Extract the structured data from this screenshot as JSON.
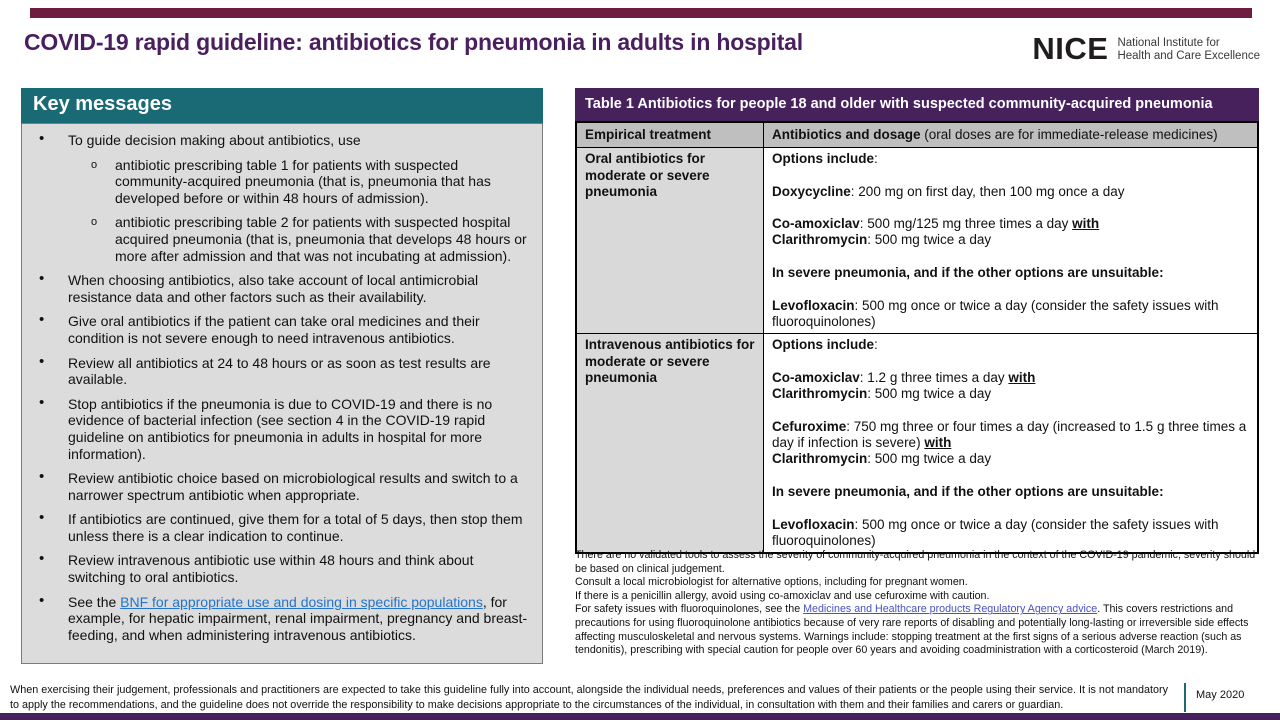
{
  "page": {
    "title": "COVID-19 rapid guideline: antibiotics for pneumonia in adults in hospital"
  },
  "logo": {
    "acronym": "NICE",
    "tagline1": "National Institute for",
    "tagline2": "Health and Care Excellence"
  },
  "colors": {
    "title_purple": "#4a1f5f",
    "table_purple": "#46215c",
    "teal": "#196a75",
    "panel_gray": "#dcdcdc",
    "header_gray": "#bfbfbf",
    "cell_gray": "#d9d9d9",
    "rule_maroon": "#6e1d40",
    "link_blue": "#2374cf",
    "link_violet": "#4752c4"
  },
  "key_messages": {
    "title": "Key messages",
    "bullets": [
      {
        "level": 1,
        "segments": [
          {
            "t": "To guide decision making about antibiotics, use"
          }
        ]
      },
      {
        "level": 2,
        "segments": [
          {
            "t": "antibiotic prescribing table 1 for patients with suspected community-acquired pneumonia (that is, pneumonia that has developed before or within 48 hours of admission)."
          }
        ]
      },
      {
        "level": 2,
        "segments": [
          {
            "t": "antibiotic prescribing table 2 for patients with suspected hospital acquired pneumonia (that is, pneumonia that develops 48 hours or more after admission and that was not incubating at admission)."
          }
        ]
      },
      {
        "level": 1,
        "segments": [
          {
            "t": "When choosing antibiotics, also take account of local antimicrobial resistance data and other factors such as their availability."
          }
        ]
      },
      {
        "level": 1,
        "segments": [
          {
            "t": "Give oral antibiotics if the patient can take oral medicines and their condition is not severe enough to need intravenous antibiotics."
          }
        ]
      },
      {
        "level": 1,
        "segments": [
          {
            "t": "Review all antibiotics at 24 to 48 hours or as soon as test results are available."
          }
        ]
      },
      {
        "level": 1,
        "segments": [
          {
            "t": "Stop antibiotics if the pneumonia is due to COVID-19 and there is no evidence of bacterial infection (see section 4 in the COVID-19 rapid guideline on antibiotics for pneumonia in adults in hospital for more information)."
          }
        ]
      },
      {
        "level": 1,
        "segments": [
          {
            "t": "Review antibiotic choice based on microbiological results and switch to a narrower spectrum antibiotic when appropriate."
          }
        ]
      },
      {
        "level": 1,
        "segments": [
          {
            "t": "If antibiotics are continued, give them for a total of 5 days, then stop them unless there is a clear indication to continue."
          }
        ]
      },
      {
        "level": 1,
        "segments": [
          {
            "t": "Review intravenous antibiotic use within 48 hours and think about switching to oral antibiotics."
          }
        ]
      },
      {
        "level": 1,
        "segments": [
          {
            "t": "See the "
          },
          {
            "t": "BNF for appropriate use and dosing in specific populations",
            "link": true,
            "name": "bnf-link"
          },
          {
            "t": ", for example, for hepatic impairment, renal impairment, pregnancy and breast-feeding, and when administering intravenous antibiotics."
          }
        ]
      }
    ]
  },
  "table1": {
    "title": "Table 1 Antibiotics for people 18 and older with suspected community-acquired pneumonia",
    "header": {
      "col1": "Empirical treatment",
      "col2_bold": "Antibiotics and dosage",
      "col2_rest": " (oral doses are for immediate-release medicines)"
    },
    "rows": [
      {
        "treatment": "Oral antibiotics for moderate or severe pneumonia",
        "paragraphs": [
          [
            {
              "t": "Options include",
              "b": true
            },
            {
              "t": ":"
            }
          ],
          [],
          [
            {
              "t": "Doxycycline",
              "b": true
            },
            {
              "t": ": 200 mg on first day, then 100 mg once a day"
            }
          ],
          [],
          [
            {
              "t": "Co-amoxiclav",
              "b": true
            },
            {
              "t": ": 500 mg/125 mg three times a day "
            },
            {
              "t": "with",
              "b": true,
              "u": true
            }
          ],
          [
            {
              "t": "Clarithromycin",
              "b": true
            },
            {
              "t": ": 500 mg twice a day"
            }
          ],
          [],
          [
            {
              "t": "In severe pneumonia, and if the other options are unsuitable:",
              "b": true
            }
          ],
          [],
          [
            {
              "t": "Levofloxacin",
              "b": true
            },
            {
              "t": ": 500 mg once or twice a day (consider the safety issues with fluoroquinolones)"
            }
          ]
        ]
      },
      {
        "treatment": "Intravenous antibiotics for moderate or severe pneumonia",
        "paragraphs": [
          [
            {
              "t": "Options include",
              "b": true
            },
            {
              "t": ":"
            }
          ],
          [],
          [
            {
              "t": "Co-amoxiclav",
              "b": true
            },
            {
              "t": ": 1.2 g three times a day "
            },
            {
              "t": "with",
              "b": true,
              "u": true
            }
          ],
          [
            {
              "t": "Clarithromycin",
              "b": true
            },
            {
              "t": ": 500 mg twice a day"
            }
          ],
          [],
          [
            {
              "t": "Cefuroxime",
              "b": true
            },
            {
              "t": ": 750 mg three or four times a day (increased to 1.5 g three times a day if infection is severe) "
            },
            {
              "t": "with",
              "b": true,
              "u": true
            }
          ],
          [
            {
              "t": "Clarithromycin",
              "b": true
            },
            {
              "t": ": 500 mg twice a day"
            }
          ],
          [],
          [
            {
              "t": "In severe pneumonia, and if the other options are unsuitable:",
              "b": true
            }
          ],
          [],
          [
            {
              "t": "Levofloxacin",
              "b": true
            },
            {
              "t": ": 500 mg once or twice a day (consider the safety issues with fluoroquinolones)"
            }
          ]
        ]
      }
    ]
  },
  "footnotes": [
    [
      {
        "t": "There are no validated tools to assess the severity of community-acquired pneumonia in the context of the COVID-19 pandemic; severity should be based on clinical judgement."
      }
    ],
    [
      {
        "t": "Consult a local microbiologist for alternative options, including for pregnant women."
      }
    ],
    [
      {
        "t": "If there is a penicillin allergy, avoid using co-amoxiclav and use cefuroxime with caution."
      }
    ],
    [
      {
        "t": "For safety issues with fluoroquinolones, see the "
      },
      {
        "t": "Medicines and Healthcare products Regulatory Agency advice",
        "link": true,
        "name": "mhra-link"
      },
      {
        "t": ". This covers restrictions and precautions for using fluoroquinolone antibiotics because of very rare reports of disabling and potentially long-lasting or irreversible side effects affecting musculoskeletal and nervous systems. Warnings include: stopping treatment at the first signs of a serious adverse reaction (such as tendonitis), prescribing with special caution for people over 60 years and avoiding coadministration with a corticosteroid (March 2019)."
      }
    ]
  ],
  "footer": {
    "text": "When exercising their judgement, professionals and practitioners are expected to take this guideline fully into account, alongside the individual needs, preferences and values of their patients or the people using their service. It is not mandatory to apply the recommendations, and the guideline does not override the responsibility to make decisions appropriate to the circumstances of the individual, in consultation with them and their families and carers or guardian.",
    "date": "May 2020"
  }
}
